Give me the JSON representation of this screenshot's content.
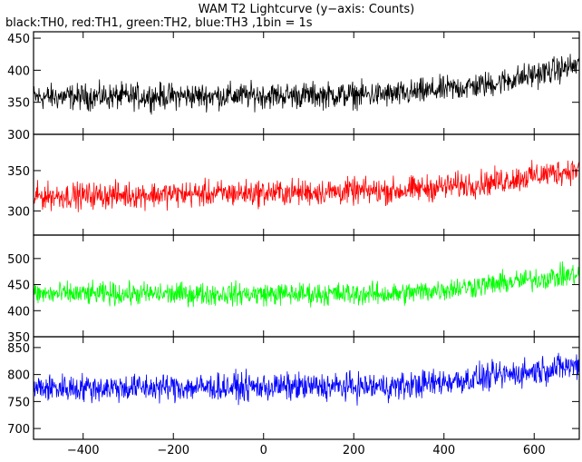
{
  "title": "WAM T2 Lightcurve (y−axis: Counts)",
  "subtitle": "black:TH0, red:TH1, green:TH2, blue:TH3 ,1bin = 1s",
  "chart_data": {
    "type": "line",
    "title": "WAM T2 Lightcurve (y−axis: Counts)",
    "subtitle": "black:TH0, red:TH1, green:TH2, blue:TH3 ,1bin = 1s",
    "xlim": [
      -510,
      700
    ],
    "x_ticks": [
      -400,
      -200,
      0,
      200,
      400,
      600
    ],
    "x_tick_labels": [
      "−400",
      "−200",
      "0",
      "200",
      "400",
      "600"
    ],
    "grid": false,
    "panels": [
      {
        "name": "TH0",
        "color": "#000000",
        "ylim": [
          300,
          460
        ],
        "y_ticks": [
          300,
          350,
          400,
          450
        ],
        "trend": [
          [
            -510,
            358
          ],
          [
            300,
            362
          ],
          [
            500,
            378
          ],
          [
            700,
            408
          ]
        ],
        "noise_amplitude": 30,
        "sample_count": 1210
      },
      {
        "name": "TH1",
        "color": "#ff0000",
        "ylim": [
          270,
          395
        ],
        "y_ticks": [
          300,
          350
        ],
        "trend": [
          [
            -510,
            318
          ],
          [
            300,
            325
          ],
          [
            500,
            335
          ],
          [
            700,
            352
          ]
        ],
        "noise_amplitude": 24,
        "sample_count": 1210
      },
      {
        "name": "TH2",
        "color": "#00ff00",
        "ylim": [
          350,
          545
        ],
        "y_ticks": [
          350,
          400,
          450,
          500
        ],
        "trend": [
          [
            -510,
            432
          ],
          [
            300,
            432
          ],
          [
            500,
            450
          ],
          [
            700,
            470
          ]
        ],
        "noise_amplitude": 32,
        "sample_count": 1210
      },
      {
        "name": "TH3",
        "color": "#0000ff",
        "ylim": [
          680,
          870
        ],
        "y_ticks": [
          700,
          750,
          800,
          850
        ],
        "trend": [
          [
            -510,
            775
          ],
          [
            300,
            778
          ],
          [
            500,
            795
          ],
          [
            700,
            818
          ]
        ],
        "noise_amplitude": 38,
        "sample_count": 1210
      }
    ]
  }
}
